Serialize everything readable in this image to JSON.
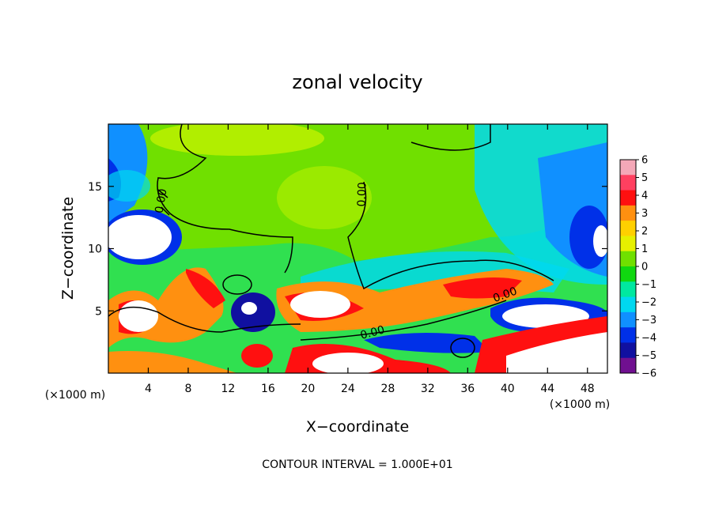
{
  "chart_data": {
    "type": "heatmap",
    "title": "zonal velocity",
    "xlabel": "X−coordinate",
    "ylabel": "Z−coordinate",
    "x_unit": "(×1000 m)",
    "x_unit_right": "(×1000 m)",
    "xlim": [
      0,
      50
    ],
    "ylim": [
      0,
      20
    ],
    "x_ticks": [
      4,
      8,
      12,
      16,
      20,
      24,
      28,
      32,
      36,
      40,
      44,
      48
    ],
    "x_tick_labels": [
      "4",
      "8",
      "12",
      "16",
      "20",
      "24",
      "28",
      "32",
      "36",
      "40",
      "44",
      "48"
    ],
    "y_ticks": [
      5,
      10,
      15
    ],
    "y_tick_labels": [
      "5",
      "10",
      "15"
    ],
    "colorbar": {
      "min": -6,
      "max": 6,
      "ticks": [
        6,
        5,
        4,
        3,
        2,
        1,
        0,
        -1,
        -2,
        -3,
        -4,
        -5,
        -6
      ],
      "tick_labels": [
        "6",
        "5",
        "4",
        "3",
        "2",
        "1",
        "0",
        "−1",
        "−2",
        "−3",
        "−4",
        "−5",
        "−6"
      ],
      "colors": [
        "#f4a8b8",
        "#ff4060",
        "#ff1010",
        "#ff9010",
        "#ffd000",
        "#e6f000",
        "#70e000",
        "#10d810",
        "#00e8a0",
        "#00d8f0",
        "#1090ff",
        "#0030e8",
        "#1010a0",
        "#701090"
      ]
    },
    "contour_labels": [
      "0.00",
      "0.00",
      "0.00",
      "0.00"
    ],
    "contour_interval_text": "CONTOUR INTERVAL = 1.000E+01"
  }
}
